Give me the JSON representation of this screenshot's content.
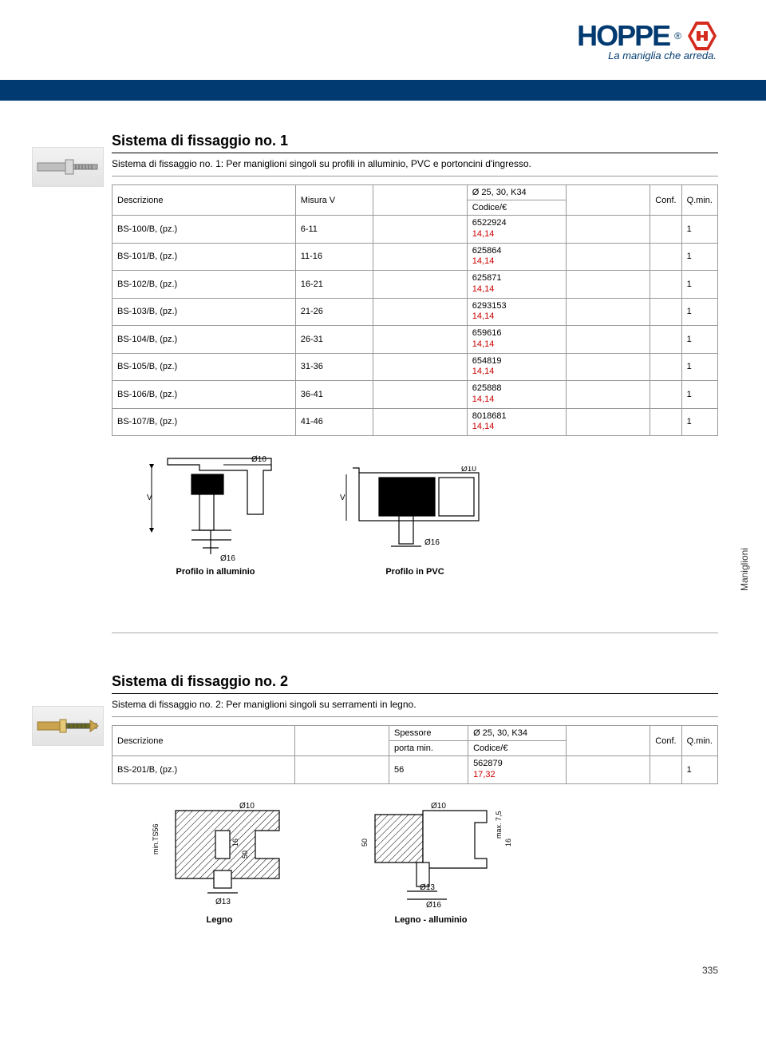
{
  "header": {
    "logo_text": "HOPPE",
    "logo_r": "®",
    "tagline": "La maniglia che arreda.",
    "logo_color": "#003a70",
    "hex_fill": "#d52b1e"
  },
  "page_number": "335",
  "side_tab": "Maniglioni",
  "section1": {
    "title": "Sistema di fissaggio no. 1",
    "subtitle": "Sistema di fissaggio no. 1: Per maniglioni singoli su profili in alluminio, PVC e portoncini d'ingresso.",
    "table": {
      "head": {
        "desc": "Descrizione",
        "misura": "Misura V",
        "diam": "Ø 25, 30, K34",
        "codice": "Codice/€",
        "conf": "Conf.",
        "qmin": "Q.min."
      },
      "rows": [
        {
          "desc": "BS-100/B, (pz.)",
          "mis": "6-11",
          "code": "6522924",
          "price": "14,14",
          "qmin": "1"
        },
        {
          "desc": "BS-101/B, (pz.)",
          "mis": "11-16",
          "code": "625864",
          "price": "14,14",
          "qmin": "1"
        },
        {
          "desc": "BS-102/B, (pz.)",
          "mis": "16-21",
          "code": "625871",
          "price": "14,14",
          "qmin": "1"
        },
        {
          "desc": "BS-103/B, (pz.)",
          "mis": "21-26",
          "code": "6293153",
          "price": "14,14",
          "qmin": "1"
        },
        {
          "desc": "BS-104/B, (pz.)",
          "mis": "26-31",
          "code": "659616",
          "price": "14,14",
          "qmin": "1"
        },
        {
          "desc": "BS-105/B, (pz.)",
          "mis": "31-36",
          "code": "654819",
          "price": "14,14",
          "qmin": "1"
        },
        {
          "desc": "BS-106/B, (pz.)",
          "mis": "36-41",
          "code": "625888",
          "price": "14,14",
          "qmin": "1"
        },
        {
          "desc": "BS-107/B, (pz.)",
          "mis": "41-46",
          "code": "8018681",
          "price": "14,14",
          "qmin": "1"
        }
      ]
    },
    "diagrams": {
      "d10": "Ø10",
      "d16": "Ø16",
      "v": "V",
      "left_label": "Profilo in alluminio",
      "right_label": "Profilo in PVC"
    }
  },
  "section2": {
    "title": "Sistema di fissaggio no. 2",
    "subtitle": "Sistema di fissaggio no. 2: Per maniglioni singoli su serramenti in legno.",
    "table": {
      "head": {
        "desc": "Descrizione",
        "spess1": "Spessore",
        "spess2": "porta min.",
        "diam": "Ø 25, 30, K34",
        "codice": "Codice/€",
        "conf": "Conf.",
        "qmin": "Q.min."
      },
      "rows": [
        {
          "desc": "BS-201/B, (pz.)",
          "sp": "56",
          "code": "562879",
          "price": "17,32",
          "qmin": "1"
        }
      ]
    },
    "diagrams": {
      "d10": "Ø10",
      "d13": "Ø13",
      "d16": "Ø16",
      "t50": "50",
      "t16": "16",
      "min": "min.TS56",
      "max": "max. 7,5",
      "left_label": "Legno",
      "right_label": "Legno - alluminio"
    }
  }
}
